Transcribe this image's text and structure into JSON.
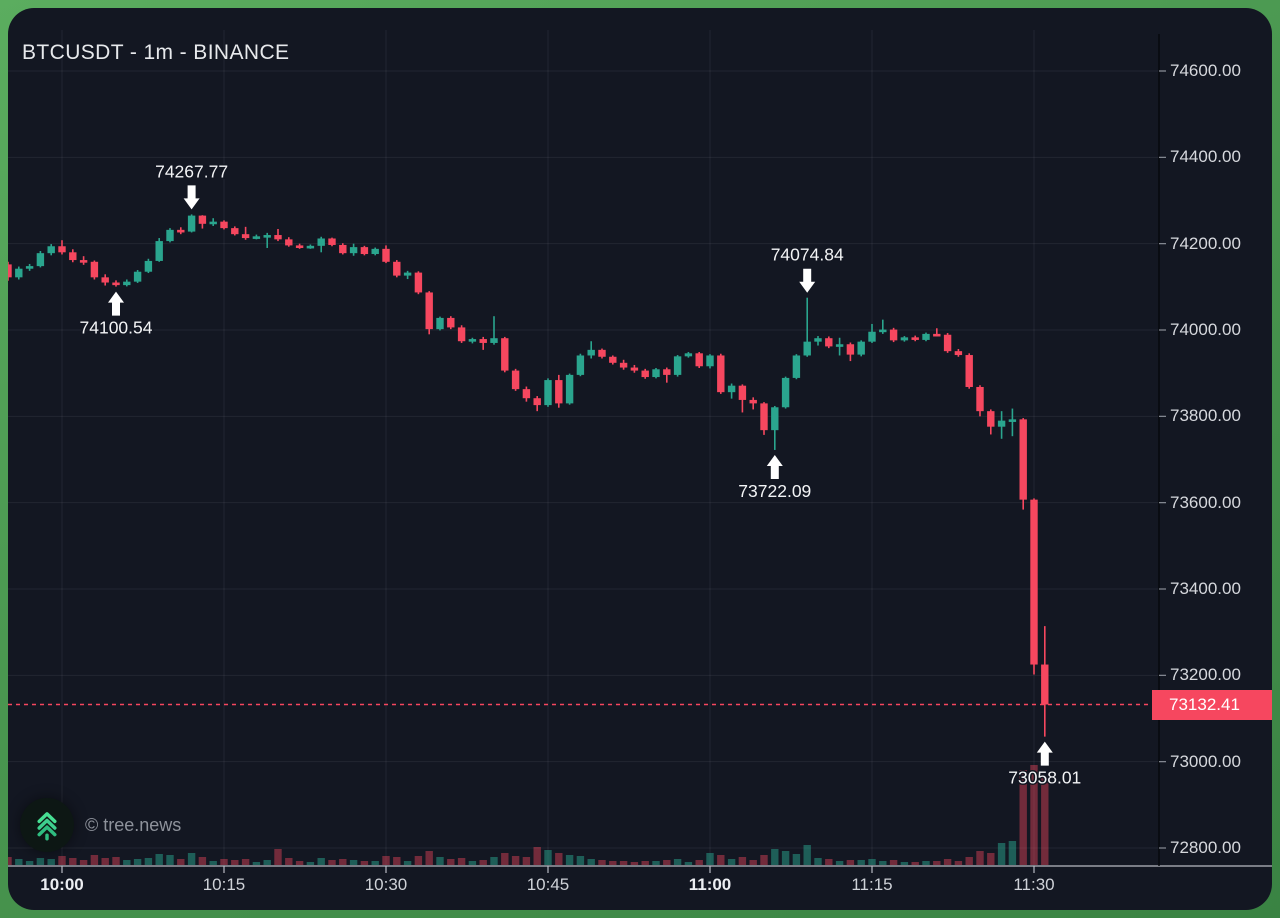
{
  "header": {
    "title": "BTCUSDT - 1m - BINANCE"
  },
  "watermark": {
    "text": "© tree.news",
    "logo_icon": "tree-chevrons-up-icon"
  },
  "price_scale": {
    "last_price_label": "73132.41",
    "labels": [
      "74600.00",
      "74400.00",
      "74200.00",
      "74000.00",
      "73800.00",
      "73600.00",
      "73400.00",
      "73200.00",
      "73000.00",
      "72800.00"
    ]
  },
  "time_scale": {
    "ticks": [
      {
        "label": "10:00",
        "index": 5,
        "bold": true
      },
      {
        "label": "10:15",
        "index": 20,
        "bold": false
      },
      {
        "label": "10:30",
        "index": 35,
        "bold": false
      },
      {
        "label": "10:45",
        "index": 50,
        "bold": false
      },
      {
        "label": "11:00",
        "index": 65,
        "bold": true
      },
      {
        "label": "11:15",
        "index": 80,
        "bold": false
      },
      {
        "label": "11:30",
        "index": 95,
        "bold": false
      }
    ]
  },
  "colors": {
    "background": "#131722",
    "frame_green": "#4a9750",
    "up": "#2aa58e",
    "down": "#f6475f",
    "up_volume": "rgba(42,165,142,0.5)",
    "down_volume": "rgba(246,71,95,0.42)",
    "grid": "rgba(240,243,250,0.07)",
    "axis_line": "#b7bac3",
    "axis_text": "#d6d8dd",
    "last_price_line": "#f6475f",
    "annotation_text": "#f3f4f6",
    "annotation_arrow": "#ffffff",
    "logo_green": "#3ecf8e"
  },
  "chart_data": {
    "type": "candlestick",
    "title": "BTCUSDT - 1m - BINANCE",
    "symbol": "BTCUSDT",
    "interval": "1m",
    "exchange": "BINANCE",
    "last_price": 73132.41,
    "y_axis": {
      "min": 72800,
      "max": 74600,
      "tick_step": 200,
      "grid": true,
      "side": "right"
    },
    "x_axis": {
      "visible_range": [
        "09:55",
        "11:31"
      ],
      "tick_labels": [
        "10:00",
        "10:15",
        "10:30",
        "10:45",
        "11:00",
        "11:15",
        "11:30"
      ]
    },
    "annotations": [
      {
        "text": "74267.77",
        "price": 74267.77,
        "index": 17,
        "time": "10:12",
        "arrow": "down"
      },
      {
        "text": "74100.54",
        "price": 74100.54,
        "index": 10,
        "time": "10:05",
        "arrow": "up"
      },
      {
        "text": "74074.84",
        "price": 74074.84,
        "index": 74,
        "time": "11:09",
        "arrow": "down"
      },
      {
        "text": "73722.09",
        "price": 73722.09,
        "index": 71,
        "time": "11:06",
        "arrow": "up"
      },
      {
        "text": "73058.01",
        "price": 73058.01,
        "index": 96,
        "time": "11:31",
        "arrow": "up"
      }
    ],
    "columns": [
      "time",
      "open",
      "high",
      "low",
      "close",
      "volume_rel"
    ],
    "candles": [
      [
        "09:55",
        74152,
        74158,
        74114,
        74122,
        8
      ],
      [
        "09:56",
        74122,
        74147,
        74117,
        74142,
        6
      ],
      [
        "09:57",
        74142,
        74153,
        74137,
        74148,
        4
      ],
      [
        "09:58",
        74148,
        74183,
        74145,
        74178,
        7
      ],
      [
        "09:59",
        74178,
        74199,
        74173,
        74194,
        6
      ],
      [
        "10:00",
        74194,
        74208,
        74175,
        74180,
        9
      ],
      [
        "10:01",
        74180,
        74187,
        74157,
        74162,
        7
      ],
      [
        "10:02",
        74162,
        74171,
        74151,
        74158,
        5
      ],
      [
        "10:03",
        74158,
        74161,
        74117,
        74122,
        10
      ],
      [
        "10:04",
        74122,
        74129,
        74103,
        74110,
        7
      ],
      [
        "10:05",
        74110,
        74115,
        74100.54,
        74104,
        8
      ],
      [
        "10:06",
        74104,
        74117,
        74101,
        74112,
        5
      ],
      [
        "10:07",
        74112,
        74139,
        74109,
        74135,
        6
      ],
      [
        "10:08",
        74135,
        74165,
        74132,
        74160,
        7
      ],
      [
        "10:09",
        74160,
        74213,
        74158,
        74206,
        11
      ],
      [
        "10:10",
        74206,
        74236,
        74203,
        74232,
        10
      ],
      [
        "10:11",
        74232,
        74238,
        74222,
        74228,
        6
      ],
      [
        "10:12",
        74228,
        74267.77,
        74226,
        74265,
        12
      ],
      [
        "10:13",
        74265,
        74266,
        74235,
        74246,
        8
      ],
      [
        "10:14",
        74246,
        74259,
        74241,
        74251,
        4
      ],
      [
        "10:15",
        74251,
        74254,
        74233,
        74236,
        6
      ],
      [
        "10:16",
        74236,
        74240,
        74219,
        74222,
        5
      ],
      [
        "10:17",
        74222,
        74239,
        74209,
        74213,
        6
      ],
      [
        "10:18",
        74213,
        74221,
        74210,
        74217,
        3
      ],
      [
        "10:19",
        74217,
        74225,
        74190,
        74220,
        5
      ],
      [
        "10:20",
        74220,
        74234,
        74206,
        74210,
        16
      ],
      [
        "10:21",
        74210,
        74215,
        74193,
        74196,
        7
      ],
      [
        "10:22",
        74196,
        74200,
        74188,
        74191,
        4
      ],
      [
        "10:23",
        74191,
        74198,
        74188,
        74195,
        3
      ],
      [
        "10:24",
        74195,
        74216,
        74180,
        74212,
        7
      ],
      [
        "10:25",
        74212,
        74214,
        74194,
        74197,
        5
      ],
      [
        "10:26",
        74197,
        74201,
        74175,
        74178,
        6
      ],
      [
        "10:27",
        74178,
        74200,
        74172,
        74192,
        5
      ],
      [
        "10:28",
        74192,
        74195,
        74173,
        74176,
        4
      ],
      [
        "10:29",
        74176,
        74191,
        74173,
        74188,
        4
      ],
      [
        "10:30",
        74188,
        74196,
        74155,
        74158,
        9
      ],
      [
        "10:31",
        74158,
        74162,
        74122,
        74126,
        8
      ],
      [
        "10:32",
        74126,
        74137,
        74118,
        74133,
        4
      ],
      [
        "10:33",
        74133,
        74136,
        74083,
        74087,
        9
      ],
      [
        "10:34",
        74087,
        74090,
        73990,
        74002,
        14
      ],
      [
        "10:35",
        74002,
        74031,
        73999,
        74028,
        8
      ],
      [
        "10:36",
        74028,
        74032,
        74002,
        74006,
        6
      ],
      [
        "10:37",
        74006,
        74011,
        73970,
        73974,
        7
      ],
      [
        "10:38",
        73974,
        73982,
        73969,
        73979,
        4
      ],
      [
        "10:39",
        73979,
        73984,
        73954,
        73970,
        5
      ],
      [
        "10:40",
        73970,
        74032,
        73966,
        73981,
        8
      ],
      [
        "10:41",
        73981,
        73984,
        73902,
        73906,
        12
      ],
      [
        "10:42",
        73906,
        73910,
        73859,
        73863,
        9
      ],
      [
        "10:43",
        73863,
        73869,
        73834,
        73842,
        8
      ],
      [
        "10:44",
        73842,
        73847,
        73812,
        73826,
        18
      ],
      [
        "10:45",
        73826,
        73888,
        73822,
        73884,
        15
      ],
      [
        "10:46",
        73884,
        73896,
        73820,
        73830,
        12
      ],
      [
        "10:47",
        73830,
        73899,
        73827,
        73896,
        10
      ],
      [
        "10:48",
        73896,
        73945,
        73893,
        73941,
        9
      ],
      [
        "10:49",
        73941,
        73974,
        73934,
        73954,
        6
      ],
      [
        "10:50",
        73954,
        73957,
        73934,
        73938,
        5
      ],
      [
        "10:51",
        73938,
        73941,
        73920,
        73924,
        4
      ],
      [
        "10:52",
        73924,
        73931,
        73908,
        73913,
        4
      ],
      [
        "10:53",
        73913,
        73919,
        73901,
        73906,
        3
      ],
      [
        "10:54",
        73906,
        73910,
        73887,
        73891,
        4
      ],
      [
        "10:55",
        73891,
        73912,
        73888,
        73909,
        4
      ],
      [
        "10:56",
        73909,
        73913,
        73878,
        73896,
        5
      ],
      [
        "10:57",
        73896,
        73942,
        73892,
        73939,
        6
      ],
      [
        "10:58",
        73939,
        73949,
        73936,
        73946,
        3
      ],
      [
        "10:59",
        73946,
        73949,
        73912,
        73916,
        5
      ],
      [
        "11:00",
        73916,
        73944,
        73911,
        73941,
        12
      ],
      [
        "11:01",
        73941,
        73945,
        73852,
        73856,
        10
      ],
      [
        "11:02",
        73856,
        73876,
        73841,
        73871,
        6
      ],
      [
        "11:03",
        73871,
        73874,
        73809,
        73838,
        8
      ],
      [
        "11:04",
        73838,
        73844,
        73816,
        73830,
        5
      ],
      [
        "11:05",
        73830,
        73833,
        73757,
        73768,
        10
      ],
      [
        "11:06",
        73768,
        73824,
        73722.09,
        73821,
        16
      ],
      [
        "11:07",
        73821,
        73892,
        73818,
        73889,
        14
      ],
      [
        "11:08",
        73889,
        73944,
        73886,
        73941,
        11
      ],
      [
        "11:09",
        73941,
        74074.84,
        73938,
        73973,
        20
      ],
      [
        "11:10",
        73973,
        73986,
        73964,
        73981,
        7
      ],
      [
        "11:11",
        73981,
        73985,
        73958,
        73962,
        6
      ],
      [
        "11:12",
        73962,
        73982,
        73941,
        73967,
        4
      ],
      [
        "11:13",
        73967,
        73971,
        73928,
        73943,
        5
      ],
      [
        "11:14",
        73943,
        73976,
        73939,
        73973,
        5
      ],
      [
        "11:15",
        73973,
        74014,
        73970,
        73996,
        6
      ],
      [
        "11:16",
        73996,
        74024,
        73991,
        74001,
        4
      ],
      [
        "11:17",
        74001,
        74005,
        73972,
        73976,
        5
      ],
      [
        "11:18",
        73976,
        73986,
        73973,
        73983,
        3
      ],
      [
        "11:19",
        73983,
        73987,
        73974,
        73977,
        3
      ],
      [
        "11:20",
        73977,
        73994,
        73974,
        73991,
        4
      ],
      [
        "11:21",
        73991,
        74004,
        73985,
        73989,
        4
      ],
      [
        "11:22",
        73989,
        73993,
        73947,
        73951,
        6
      ],
      [
        "11:23",
        73951,
        73956,
        73938,
        73942,
        4
      ],
      [
        "11:24",
        73942,
        73946,
        73864,
        73868,
        8
      ],
      [
        "11:25",
        73868,
        73872,
        73800,
        73812,
        14
      ],
      [
        "11:26",
        73812,
        73816,
        73758,
        73776,
        12
      ],
      [
        "11:27",
        73776,
        73812,
        73748,
        73790,
        22
      ],
      [
        "11:28",
        73790,
        73818,
        73754,
        73793,
        24
      ],
      [
        "11:29",
        73793,
        73796,
        73584,
        73607,
        95
      ],
      [
        "11:30",
        73607,
        73610,
        73202,
        73225,
        100
      ],
      [
        "11:31",
        73225,
        73314,
        73058.01,
        73132.41,
        88
      ]
    ]
  }
}
